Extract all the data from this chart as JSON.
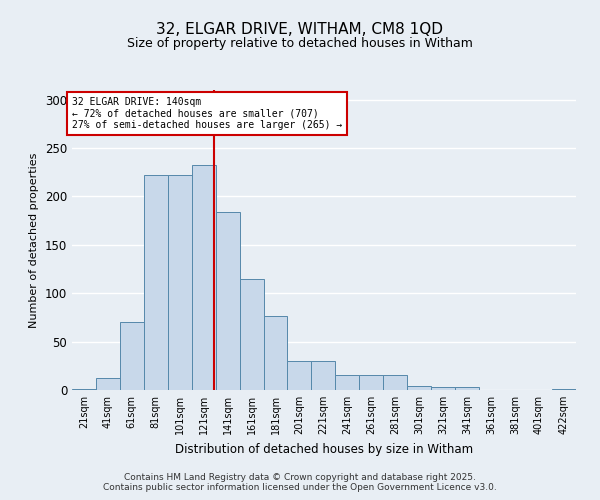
{
  "title": "32, ELGAR DRIVE, WITHAM, CM8 1QD",
  "subtitle": "Size of property relative to detached houses in Witham",
  "xlabel": "Distribution of detached houses by size in Witham",
  "ylabel": "Number of detached properties",
  "footer_line1": "Contains HM Land Registry data © Crown copyright and database right 2025.",
  "footer_line2": "Contains public sector information licensed under the Open Government Licence v3.0.",
  "annotation_line1": "32 ELGAR DRIVE: 140sqm",
  "annotation_line2": "← 72% of detached houses are smaller (707)",
  "annotation_line3": "27% of semi-detached houses are larger (265) →",
  "bar_color": "#c8d8ea",
  "bar_edge_color": "#5588aa",
  "vline_color": "#cc0000",
  "vline_x": 140,
  "annotation_box_edge": "#cc0000",
  "bins": [
    21,
    41,
    61,
    81,
    101,
    121,
    141,
    161,
    181,
    201,
    221,
    241,
    261,
    281,
    301,
    321,
    341,
    361,
    381,
    401,
    422
  ],
  "values": [
    1,
    12,
    70,
    222,
    222,
    232,
    184,
    115,
    76,
    30,
    30,
    15,
    15,
    15,
    4,
    3,
    3,
    0,
    0,
    0,
    1
  ],
  "ylim": [
    0,
    310
  ],
  "yticks": [
    0,
    50,
    100,
    150,
    200,
    250,
    300
  ],
  "bg_color": "#e8eef4",
  "plot_bg_color": "#e8eef4",
  "grid_color": "#ffffff"
}
